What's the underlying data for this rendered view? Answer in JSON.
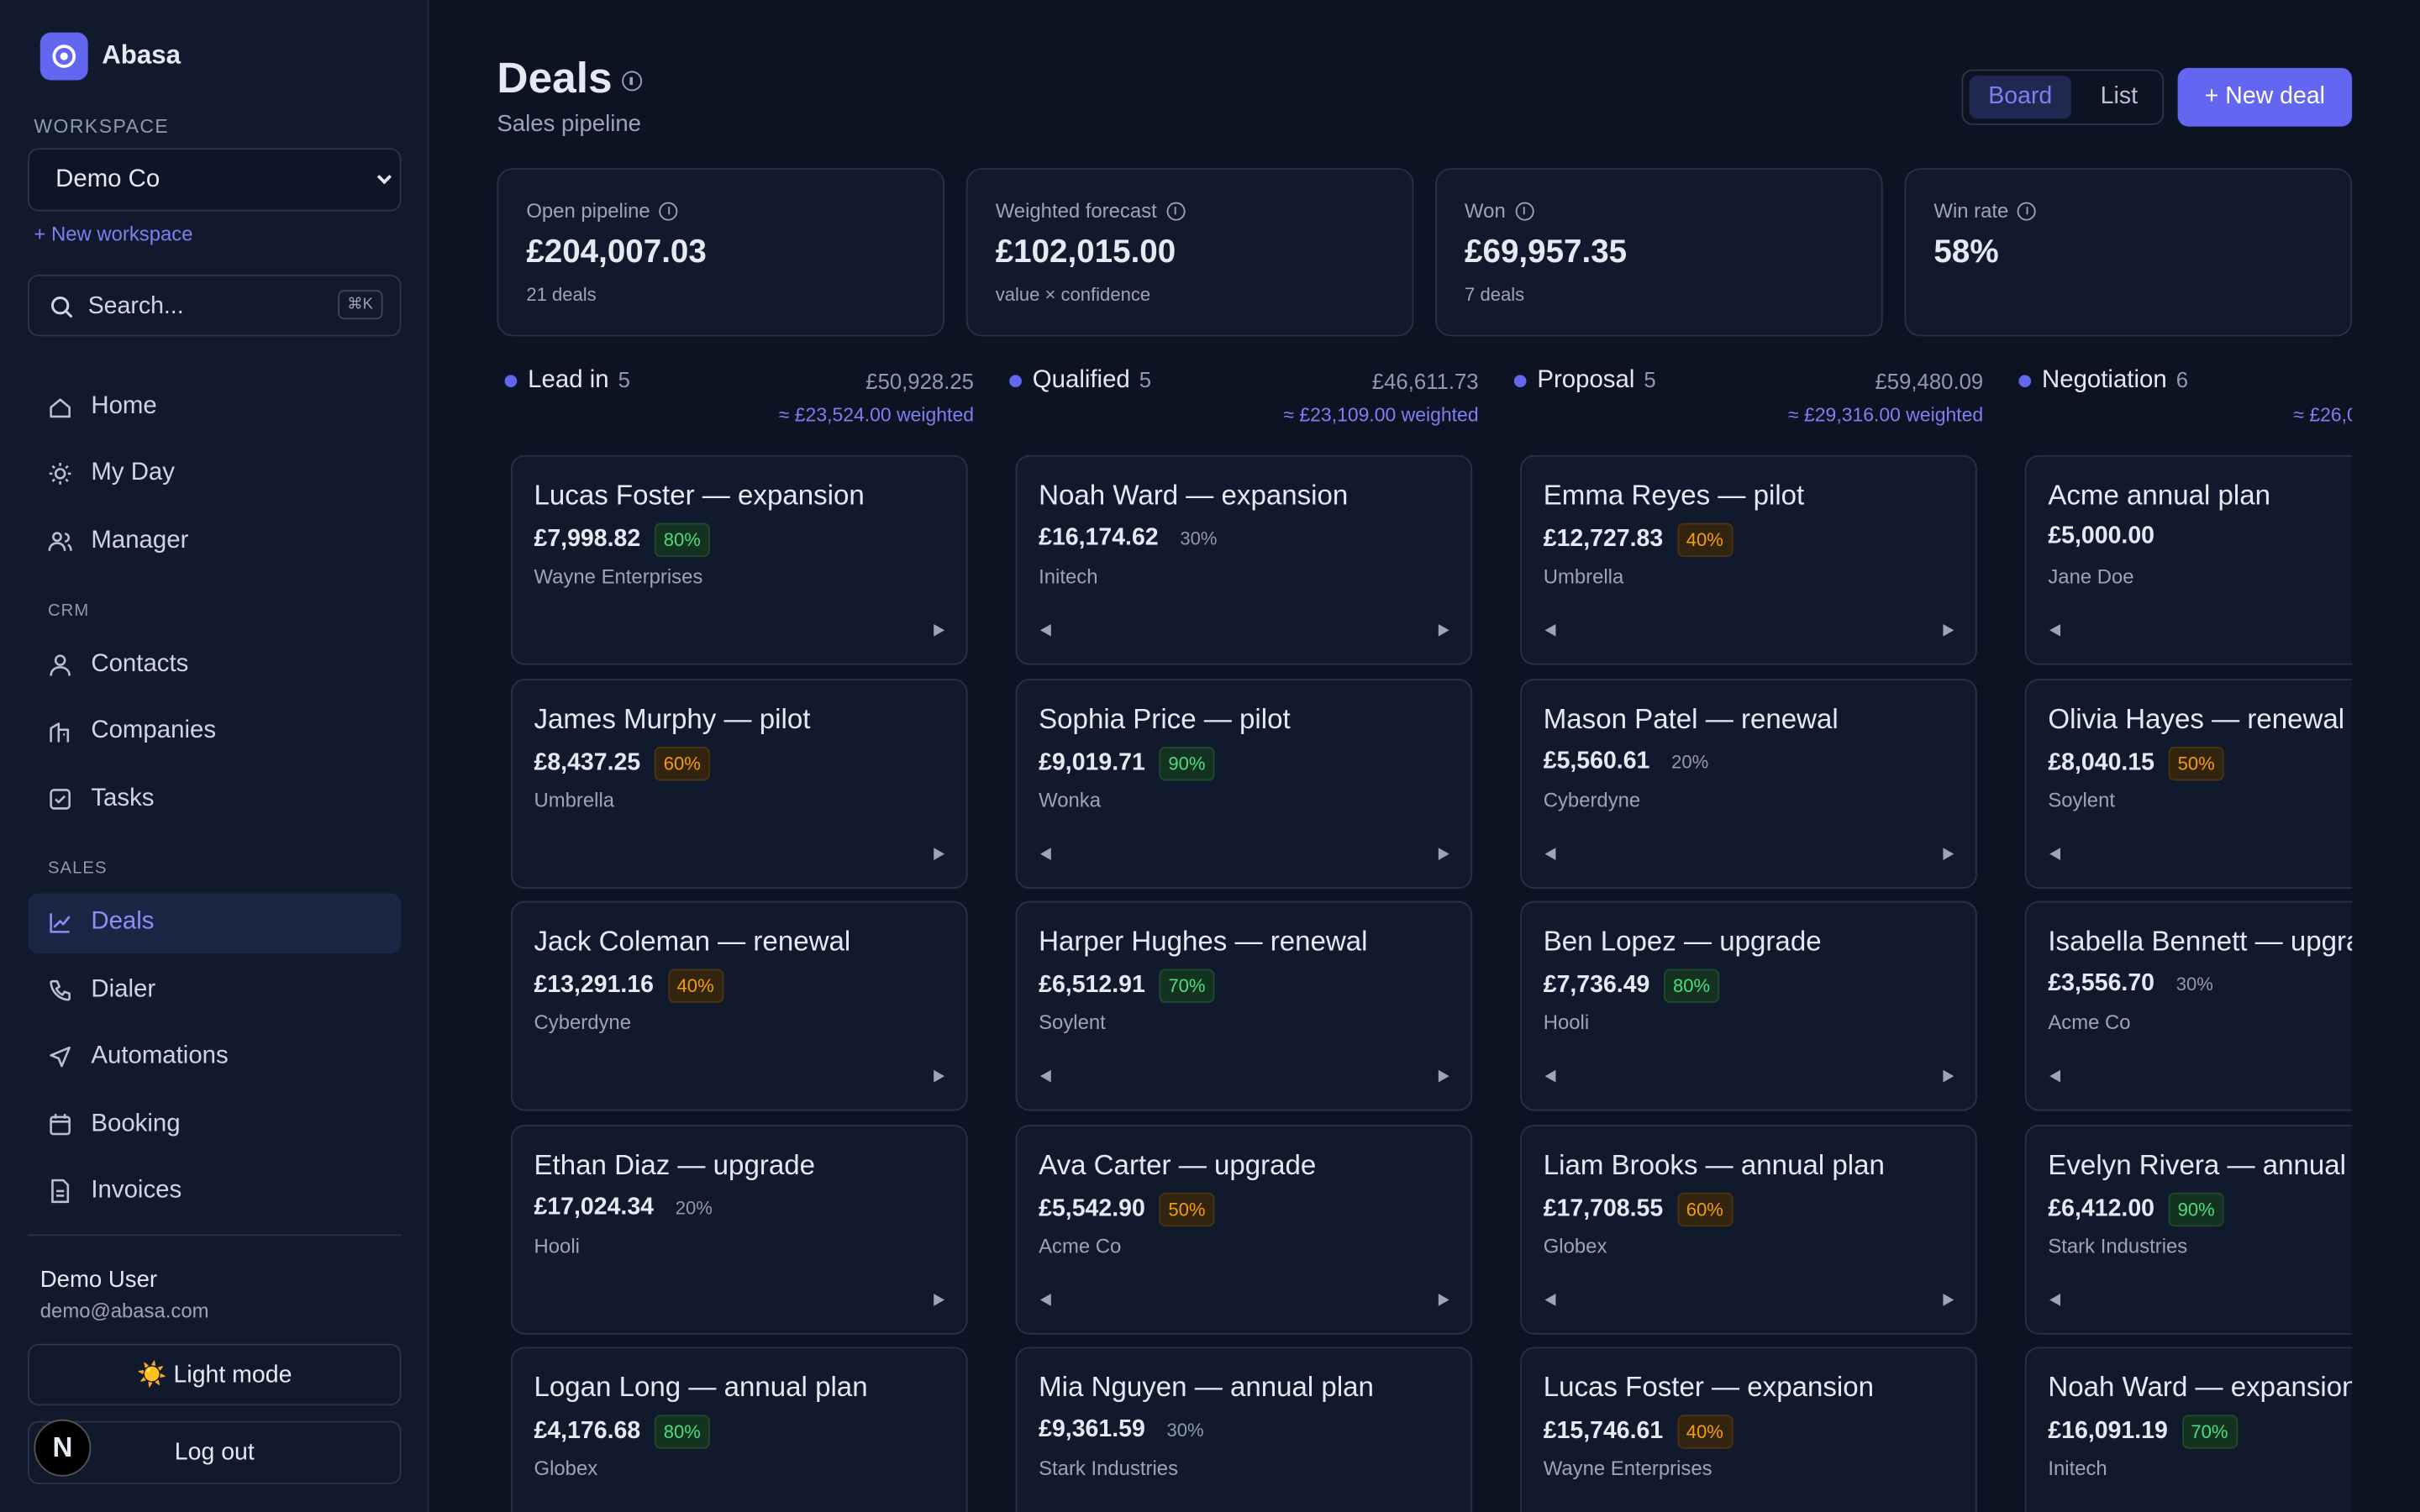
{
  "app": {
    "name": "Abasa"
  },
  "sidebar": {
    "workspace_label": "WORKSPACE",
    "workspace": "Demo Co",
    "new_workspace": "+ New workspace",
    "search_placeholder": "Search...",
    "search_shortcut": "⌘K",
    "sections": [
      {
        "items": [
          "Home",
          "My Day",
          "Manager"
        ]
      },
      {
        "label": "CRM",
        "items": [
          "Contacts",
          "Companies",
          "Tasks"
        ]
      },
      {
        "label": "SALES",
        "items": [
          "Deals",
          "Dialer",
          "Automations",
          "Booking",
          "Invoices"
        ]
      }
    ],
    "user_name": "Demo User",
    "user_email": "demo@abasa.com",
    "light_mode": "☀️ Light mode",
    "log_out": "Log out",
    "dev_badge": "N"
  },
  "header": {
    "title": "Deals",
    "subtitle": "Sales pipeline",
    "views": [
      "Board",
      "List"
    ],
    "new_deal": "+ New deal"
  },
  "stats": [
    {
      "label": "Open pipeline",
      "value": "£204,007.03",
      "note": "21 deals"
    },
    {
      "label": "Weighted forecast",
      "value": "£102,015.00",
      "note": "value × confidence"
    },
    {
      "label": "Won",
      "value": "£69,957.35",
      "note": "7 deals"
    },
    {
      "label": "Win rate",
      "value": "58%"
    }
  ],
  "columns": [
    {
      "name": "Lead in",
      "count": "5",
      "total": "£50,928.25",
      "weighted": "≈ £23,524.00 weighted",
      "cards": [
        {
          "title": "Lucas Foster — expansion",
          "amount": "£7,998.82",
          "confidence": "80%",
          "company": "Wayne Enterprises"
        },
        {
          "title": "James Murphy — pilot",
          "amount": "£8,437.25",
          "confidence": "60%",
          "company": "Umbrella"
        },
        {
          "title": "Jack Coleman — renewal",
          "amount": "£13,291.16",
          "confidence": "40%",
          "company": "Cyberdyne"
        },
        {
          "title": "Ethan Diaz — upgrade",
          "amount": "£17,024.34",
          "confidence": "20%",
          "company": "Hooli"
        },
        {
          "title": "Logan Long — annual plan",
          "amount": "£4,176.68",
          "confidence": "80%",
          "company": "Globex"
        }
      ]
    },
    {
      "name": "Qualified",
      "count": "5",
      "total": "£46,611.73",
      "weighted": "≈ £23,109.00 weighted",
      "cards": [
        {
          "title": "Noah Ward — expansion",
          "amount": "£16,174.62",
          "confidence": "30%",
          "company": "Initech"
        },
        {
          "title": "Sophia Price — pilot",
          "amount": "£9,019.71",
          "confidence": "90%",
          "company": "Wonka"
        },
        {
          "title": "Harper Hughes — renewal",
          "amount": "£6,512.91",
          "confidence": "70%",
          "company": "Soylent"
        },
        {
          "title": "Ava Carter — upgrade",
          "amount": "£5,542.90",
          "confidence": "50%",
          "company": "Acme Co"
        },
        {
          "title": "Mia Nguyen — annual plan",
          "amount": "£9,361.59",
          "confidence": "30%",
          "company": "Stark Industries"
        }
      ]
    },
    {
      "name": "Proposal",
      "count": "5",
      "total": "£59,480.09",
      "weighted": "≈ £29,316.00 weighted",
      "cards": [
        {
          "title": "Emma Reyes — pilot",
          "amount": "£12,727.83",
          "confidence": "40%",
          "company": "Umbrella"
        },
        {
          "title": "Mason Patel — renewal",
          "amount": "£5,560.61",
          "confidence": "20%",
          "company": "Cyberdyne"
        },
        {
          "title": "Ben Lopez — upgrade",
          "amount": "£7,736.49",
          "confidence": "80%",
          "company": "Hooli"
        },
        {
          "title": "Liam Brooks — annual plan",
          "amount": "£17,708.55",
          "confidence": "60%",
          "company": "Globex"
        },
        {
          "title": "Lucas Foster — expansion",
          "amount": "£15,746.61",
          "confidence": "40%",
          "company": "Wayne Enterprises"
        }
      ]
    },
    {
      "name": "Negotiation",
      "count": "6",
      "weighted": "≈ £26,0",
      "cards": [
        {
          "title": "Acme annual plan",
          "amount": "£5,000.00",
          "company": "Jane Doe"
        },
        {
          "title": "Olivia Hayes — renewal",
          "amount": "£8,040.15",
          "confidence": "50%",
          "company": "Soylent"
        },
        {
          "title": "Isabella Bennett — upgra",
          "amount": "£3,556.70",
          "confidence": "30%",
          "company": "Acme Co"
        },
        {
          "title": "Evelyn Rivera — annual p",
          "amount": "£6,412.00",
          "confidence": "90%",
          "company": "Stark Industries"
        },
        {
          "title": "Noah Ward — expansion",
          "amount": "£16,091.19",
          "confidence": "70%",
          "company": "Initech"
        }
      ]
    }
  ]
}
